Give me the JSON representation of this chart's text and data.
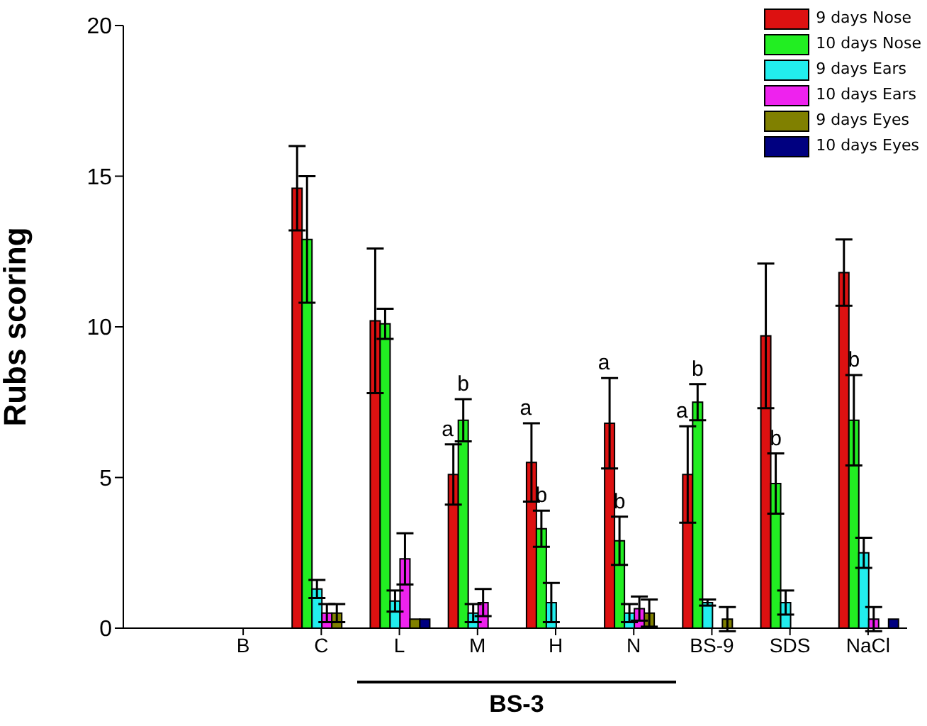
{
  "chart_data": {
    "type": "bar",
    "ylabel": "Rubs scoring",
    "categories": [
      "B",
      "C",
      "L",
      "M",
      "H",
      "N",
      "BS-9",
      "SDS",
      "NaCl"
    ],
    "series": [
      {
        "name": "9 days Nose",
        "color": "#dd1111",
        "values": [
          0,
          14.6,
          10.2,
          5.1,
          5.5,
          6.8,
          5.1,
          9.7,
          11.8
        ],
        "errors": [
          null,
          1.4,
          2.4,
          1.0,
          1.3,
          1.5,
          1.6,
          2.4,
          1.1
        ],
        "value_labels": [
          null,
          null,
          null,
          "a",
          "a",
          "a",
          "a",
          null,
          null
        ]
      },
      {
        "name": "10 days Nose",
        "color": "#22ee22",
        "values": [
          0,
          12.9,
          10.1,
          6.9,
          3.3,
          2.9,
          7.5,
          4.8,
          6.9
        ],
        "errors": [
          null,
          2.1,
          0.5,
          0.7,
          0.6,
          0.8,
          0.6,
          1.0,
          1.5
        ],
        "value_labels": [
          null,
          null,
          null,
          "b",
          "b",
          "b",
          "b",
          "b",
          "b"
        ]
      },
      {
        "name": "9 days Ears",
        "color": "#22eeee",
        "values": [
          0,
          1.3,
          0.9,
          0.5,
          0.85,
          0.5,
          0.85,
          0.85,
          2.5
        ],
        "errors": [
          null,
          0.3,
          0.35,
          0.3,
          0.65,
          0.3,
          0.1,
          0.4,
          0.5
        ]
      },
      {
        "name": "10 days Ears",
        "color": "#ee22ee",
        "values": [
          0,
          0.5,
          2.3,
          0.85,
          0,
          0.65,
          0,
          0,
          0.3
        ],
        "errors": [
          null,
          0.3,
          0.85,
          0.45,
          null,
          0.4,
          null,
          null,
          0.4
        ]
      },
      {
        "name": "9 days Eyes",
        "color": "#808000",
        "values": [
          0,
          0.5,
          0.3,
          0,
          0,
          0.5,
          0.3,
          0,
          0
        ],
        "errors": [
          null,
          0.3,
          null,
          null,
          null,
          0.45,
          0.4,
          null,
          null
        ]
      },
      {
        "name": "10 days Eyes",
        "color": "#000080",
        "values": [
          0,
          0,
          0.3,
          0,
          0,
          0,
          0,
          0,
          0.3
        ],
        "errors": [
          null,
          null,
          null,
          null,
          null,
          null,
          null,
          null,
          null
        ]
      }
    ],
    "ylim": [
      0,
      20
    ],
    "yticks": [
      0,
      5,
      10,
      15,
      20
    ],
    "grid": false,
    "legend": "top right",
    "annotations": [
      "BS-3"
    ]
  }
}
